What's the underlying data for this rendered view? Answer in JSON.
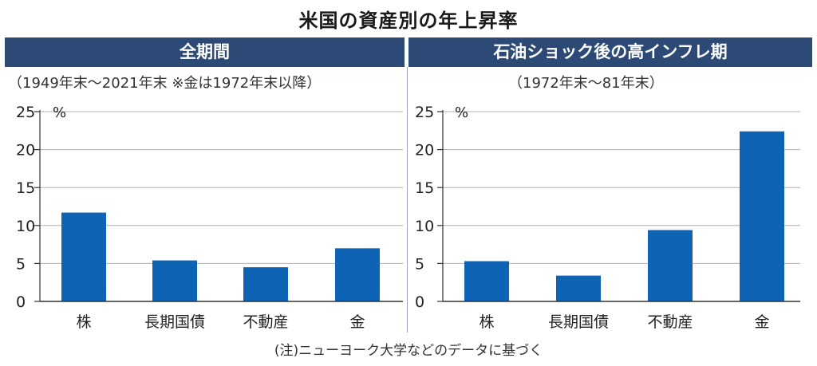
{
  "title": "米国の資産別の年上昇率",
  "note": "(注)ニューヨーク大学などのデータに基づく",
  "colors": {
    "bar": "#0f63b4",
    "band": "#2d4a76",
    "grid": "#b0b0b0",
    "axis": "#333333"
  },
  "panels": [
    {
      "header": "全期間",
      "subtitle": "（1949年末～2021年末 ※金は1972年末以降）"
    },
    {
      "header": "石油ショック後の高インフレ期",
      "subtitle": "（1972年末～81年末）"
    }
  ],
  "chart_data": [
    {
      "type": "bar",
      "title": "全期間",
      "categories": [
        "株",
        "長期国債",
        "不動産",
        "金"
      ],
      "values": [
        11.7,
        5.4,
        4.5,
        7.0
      ],
      "ylabel": "%",
      "yticks": [
        0,
        5,
        10,
        15,
        20,
        25
      ],
      "ylim": [
        0,
        25
      ],
      "grid": true
    },
    {
      "type": "bar",
      "title": "石油ショック後の高インフレ期",
      "categories": [
        "株",
        "長期国債",
        "不動産",
        "金"
      ],
      "values": [
        5.3,
        3.4,
        9.4,
        22.4
      ],
      "ylabel": "%",
      "yticks": [
        0,
        5,
        10,
        15,
        20,
        25
      ],
      "ylim": [
        0,
        25
      ],
      "grid": true
    }
  ]
}
